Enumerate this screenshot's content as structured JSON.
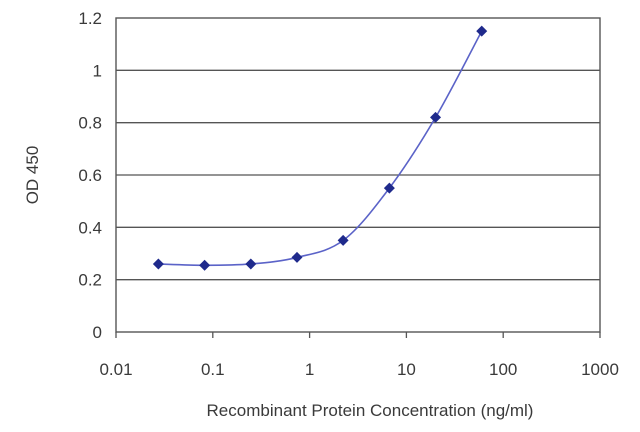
{
  "chart_data": {
    "type": "scatter",
    "title": "",
    "xlabel": "Recombinant Protein Concentration (ng/ml)",
    "ylabel": "OD 450",
    "x_scale": "log",
    "xlim": [
      0.01,
      1000
    ],
    "ylim": [
      0,
      1.2
    ],
    "x_ticks": [
      {
        "value": 0.01,
        "label": "0.01"
      },
      {
        "value": 0.1,
        "label": "0.1"
      },
      {
        "value": 1,
        "label": "1"
      },
      {
        "value": 10,
        "label": "10"
      },
      {
        "value": 100,
        "label": "100"
      },
      {
        "value": 1000,
        "label": "1000"
      }
    ],
    "y_ticks": [
      {
        "value": 0,
        "label": "0"
      },
      {
        "value": 0.2,
        "label": "0.2"
      },
      {
        "value": 0.4,
        "label": "0.4"
      },
      {
        "value": 0.6,
        "label": "0.6"
      },
      {
        "value": 0.8,
        "label": "0.8"
      },
      {
        "value": 1,
        "label": "1"
      },
      {
        "value": 1.2,
        "label": "1.2"
      }
    ],
    "grid": "horizontal",
    "legend": "none",
    "series": [
      {
        "color": "#1f2a8c",
        "line_color": "#5b63c8",
        "marker": "diamond",
        "smooth": true,
        "points": [
          {
            "x": 0.0274,
            "y": 0.26
          },
          {
            "x": 0.0823,
            "y": 0.255
          },
          {
            "x": 0.247,
            "y": 0.26
          },
          {
            "x": 0.741,
            "y": 0.285
          },
          {
            "x": 2.22,
            "y": 0.35
          },
          {
            "x": 6.67,
            "y": 0.55
          },
          {
            "x": 20,
            "y": 0.82
          },
          {
            "x": 60,
            "y": 1.15
          }
        ]
      }
    ]
  }
}
